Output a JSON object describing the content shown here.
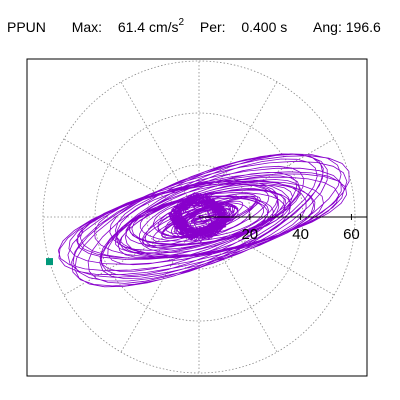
{
  "header": {
    "station": "PPUN",
    "max_label": "Max:",
    "max_value": "61.4 cm/s",
    "max_exp": "2",
    "per_label": "Per:",
    "per_value": "0.400 s",
    "ang_label": "Ang:",
    "ang_value": "196.6"
  },
  "colors": {
    "trace": "#8800cc",
    "marker": "#00997a",
    "grid": "#888888",
    "axis": "#000000"
  },
  "chart_data": {
    "type": "scatter",
    "title": "",
    "xlabel": "",
    "ylabel": "",
    "radial_ticks": [
      "20",
      "40",
      "60"
    ],
    "radial_tick_values": [
      20,
      40,
      60
    ],
    "rmax": 61.4,
    "angle_spokes_deg": [
      0,
      30,
      60,
      90,
      120,
      150,
      180,
      210,
      240,
      270,
      300,
      330
    ],
    "grid": true,
    "peak_marker": {
      "angle_deg": 196.6,
      "radius": 61.4
    }
  }
}
